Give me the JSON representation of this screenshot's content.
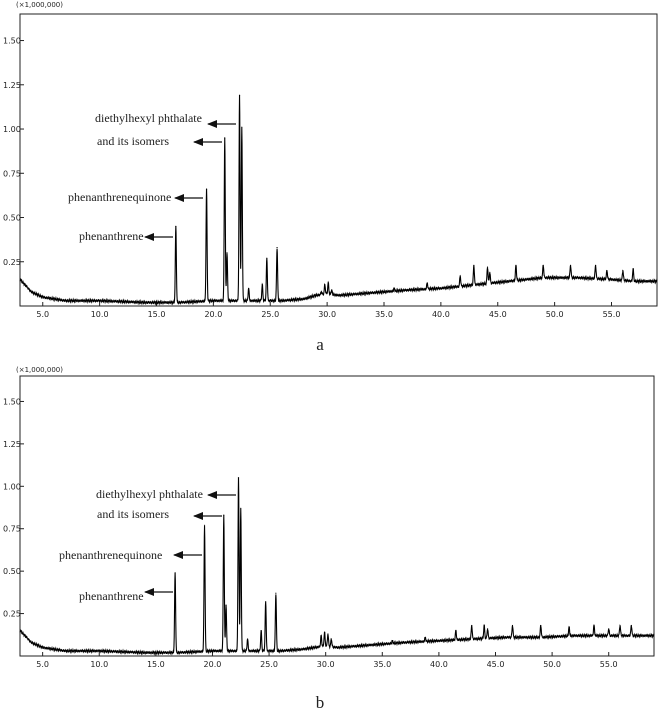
{
  "chart_data": [
    {
      "panel_label": "a",
      "type": "line",
      "y_scale_label": "(×1,000,000)",
      "xlim": [
        3.0,
        59.0
      ],
      "ylim": [
        0.0,
        1.65
      ],
      "x_ticks": [
        "5.0",
        "10.0",
        "15.0",
        "20.0",
        "25.0",
        "30.0",
        "35.0",
        "40.0",
        "45.0",
        "50.0",
        "55.0"
      ],
      "y_ticks": [
        "0.25",
        "0.50",
        "0.75",
        "1.00",
        "1.25",
        "1.50"
      ],
      "baseline": [
        [
          3.0,
          0.15
        ],
        [
          4.0,
          0.08
        ],
        [
          5.0,
          0.05
        ],
        [
          7.0,
          0.03
        ],
        [
          10.0,
          0.03
        ],
        [
          14.0,
          0.02
        ],
        [
          17.0,
          0.02
        ],
        [
          20.0,
          0.03
        ],
        [
          24.0,
          0.03
        ],
        [
          26.0,
          0.03
        ],
        [
          28.0,
          0.04
        ],
        [
          29.0,
          0.06
        ],
        [
          30.0,
          0.07
        ],
        [
          31.0,
          0.06
        ],
        [
          33.0,
          0.07
        ],
        [
          35.0,
          0.08
        ],
        [
          37.0,
          0.09
        ],
        [
          40.0,
          0.1
        ],
        [
          43.0,
          0.12
        ],
        [
          46.0,
          0.14
        ],
        [
          49.0,
          0.16
        ],
        [
          52.0,
          0.16
        ],
        [
          55.0,
          0.15
        ],
        [
          57.0,
          0.14
        ],
        [
          59.0,
          0.14
        ]
      ],
      "peaks": [
        [
          16.7,
          0.45
        ],
        [
          19.4,
          0.66
        ],
        [
          21.0,
          0.95
        ],
        [
          21.2,
          0.3
        ],
        [
          22.3,
          1.19
        ],
        [
          22.5,
          1.01
        ],
        [
          24.3,
          0.12
        ],
        [
          24.7,
          0.27
        ],
        [
          25.6,
          0.33
        ],
        [
          23.1,
          0.1
        ],
        [
          29.5,
          0.08
        ],
        [
          29.8,
          0.12
        ],
        [
          30.1,
          0.13
        ],
        [
          30.4,
          0.09
        ],
        [
          35.9,
          0.1
        ],
        [
          38.8,
          0.13
        ],
        [
          41.7,
          0.17
        ],
        [
          42.9,
          0.23
        ],
        [
          44.1,
          0.22
        ],
        [
          44.3,
          0.19
        ],
        [
          46.6,
          0.23
        ],
        [
          49.0,
          0.23
        ],
        [
          51.4,
          0.23
        ],
        [
          53.6,
          0.23
        ],
        [
          54.6,
          0.2
        ],
        [
          56.0,
          0.2
        ],
        [
          56.9,
          0.21
        ]
      ],
      "annotations": [
        {
          "text": "diethylhexyl phthalate",
          "target_x": 22.3,
          "target_y": 1.01
        },
        {
          "text": "and its  isomers",
          "target_x": 21.0,
          "target_y": 0.93
        },
        {
          "text": "phenanthrenequinone",
          "target_x": 19.4,
          "target_y": 0.66
        },
        {
          "text": "phenanthrene",
          "target_x": 16.7,
          "target_y": 0.45
        }
      ]
    },
    {
      "panel_label": "b",
      "type": "line",
      "y_scale_label": "(×1,000,000)",
      "xlim": [
        3.0,
        59.0
      ],
      "ylim": [
        0.0,
        1.65
      ],
      "x_ticks": [
        "5.0",
        "10.0",
        "15.0",
        "20.0",
        "25.0",
        "30.0",
        "35.0",
        "40.0",
        "45.0",
        "50.0",
        "55.0"
      ],
      "y_ticks": [
        "0.25",
        "0.50",
        "0.75",
        "1.00",
        "1.25",
        "1.50"
      ],
      "baseline": [
        [
          3.0,
          0.15
        ],
        [
          4.0,
          0.08
        ],
        [
          5.0,
          0.05
        ],
        [
          7.0,
          0.03
        ],
        [
          10.0,
          0.03
        ],
        [
          14.0,
          0.02
        ],
        [
          17.0,
          0.02
        ],
        [
          20.0,
          0.03
        ],
        [
          24.0,
          0.03
        ],
        [
          26.0,
          0.03
        ],
        [
          28.0,
          0.04
        ],
        [
          29.0,
          0.05
        ],
        [
          30.0,
          0.06
        ],
        [
          31.0,
          0.05
        ],
        [
          33.0,
          0.06
        ],
        [
          35.0,
          0.07
        ],
        [
          37.0,
          0.08
        ],
        [
          40.0,
          0.09
        ],
        [
          43.0,
          0.1
        ],
        [
          46.0,
          0.11
        ],
        [
          49.0,
          0.11
        ],
        [
          52.0,
          0.12
        ],
        [
          55.0,
          0.12
        ],
        [
          57.0,
          0.12
        ],
        [
          59.0,
          0.12
        ]
      ],
      "peaks": [
        [
          16.7,
          0.49
        ],
        [
          19.3,
          0.77
        ],
        [
          21.0,
          0.83
        ],
        [
          21.2,
          0.3
        ],
        [
          22.3,
          1.05
        ],
        [
          22.5,
          0.87
        ],
        [
          24.3,
          0.15
        ],
        [
          24.7,
          0.32
        ],
        [
          25.6,
          0.37
        ],
        [
          23.1,
          0.1
        ],
        [
          29.6,
          0.12
        ],
        [
          29.9,
          0.14
        ],
        [
          30.2,
          0.13
        ],
        [
          30.5,
          0.1
        ],
        [
          35.9,
          0.09
        ],
        [
          38.8,
          0.11
        ],
        [
          41.5,
          0.15
        ],
        [
          42.9,
          0.18
        ],
        [
          44.0,
          0.18
        ],
        [
          44.3,
          0.16
        ],
        [
          46.5,
          0.18
        ],
        [
          49.0,
          0.18
        ],
        [
          51.5,
          0.17
        ],
        [
          53.7,
          0.18
        ],
        [
          55.0,
          0.16
        ],
        [
          56.0,
          0.18
        ],
        [
          57.0,
          0.18
        ]
      ],
      "annotations": [
        {
          "text": "diethylhexyl phthalate",
          "target_x": 22.3,
          "target_y": 1.05
        },
        {
          "text": "and its  isomers",
          "target_x": 21.0,
          "target_y": 0.86
        },
        {
          "text": "phenanthrenequinone",
          "target_x": 19.3,
          "target_y": 0.77
        },
        {
          "text": "phenanthrene",
          "target_x": 16.7,
          "target_y": 0.49
        }
      ]
    }
  ]
}
